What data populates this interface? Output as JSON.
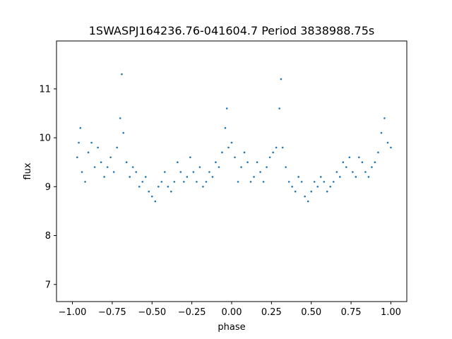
{
  "chart_data": {
    "type": "scatter",
    "title": "1SWASPJ164236.76-041604.7 Period 3838988.75s",
    "xlabel": "phase",
    "ylabel": "flux",
    "xlim": [
      -1.1,
      1.1
    ],
    "ylim": [
      6.65,
      11.98
    ],
    "xticks": [
      -1.0,
      -0.75,
      -0.5,
      -0.25,
      0.0,
      0.25,
      0.5,
      0.75,
      1.0
    ],
    "xtick_labels": [
      "−1.00",
      "−0.75",
      "−0.50",
      "−0.25",
      "0.00",
      "0.25",
      "0.50",
      "0.75",
      "1.00"
    ],
    "yticks": [
      7,
      8,
      9,
      10,
      11
    ],
    "ytick_labels": [
      "7",
      "8",
      "9",
      "10",
      "11"
    ],
    "grid": false,
    "point_color": "#1f77b4",
    "series": [
      {
        "x": [
          -0.97,
          -0.96,
          -0.95,
          -0.94,
          -0.92,
          -0.9,
          -0.88,
          -0.86,
          -0.84,
          -0.82,
          -0.8,
          -0.78,
          -0.76,
          -0.74,
          -0.72,
          -0.7,
          -0.69,
          -0.68,
          -0.66,
          -0.64,
          -0.62,
          -0.6,
          -0.58,
          -0.56,
          -0.54,
          -0.52,
          -0.5,
          -0.48,
          -0.46,
          -0.44,
          -0.42,
          -0.4,
          -0.38,
          -0.36,
          -0.34,
          -0.32,
          -0.3,
          -0.28,
          -0.26,
          -0.24,
          -0.22,
          -0.2,
          -0.18,
          -0.16,
          -0.14,
          -0.12,
          -0.1,
          -0.08,
          -0.06,
          -0.04,
          -0.03,
          -0.02,
          0.0,
          0.02,
          0.04,
          0.06,
          0.08,
          0.1,
          0.12,
          0.14,
          0.16,
          0.18,
          0.2,
          0.22,
          0.24,
          0.26,
          0.28,
          0.3,
          0.31,
          0.32,
          0.34,
          0.36,
          0.38,
          0.4,
          0.42,
          0.44,
          0.46,
          0.48,
          0.5,
          0.52,
          0.54,
          0.56,
          0.58,
          0.6,
          0.62,
          0.64,
          0.66,
          0.68,
          0.7,
          0.72,
          0.74,
          0.76,
          0.78,
          0.8,
          0.82,
          0.84,
          0.86,
          0.88,
          0.9,
          0.92,
          0.94,
          0.96,
          0.98,
          1.0
        ],
        "y": [
          9.6,
          9.9,
          10.2,
          9.3,
          9.1,
          9.7,
          9.9,
          9.4,
          9.8,
          9.5,
          9.2,
          9.4,
          9.6,
          9.3,
          9.8,
          10.4,
          11.3,
          10.1,
          9.5,
          9.2,
          9.4,
          9.3,
          9.0,
          9.1,
          9.2,
          8.9,
          8.8,
          8.7,
          9.0,
          9.1,
          9.3,
          9.0,
          8.9,
          9.1,
          9.5,
          9.3,
          9.1,
          9.2,
          9.6,
          9.3,
          9.1,
          9.4,
          9.0,
          9.1,
          9.3,
          9.2,
          9.5,
          9.4,
          9.7,
          10.2,
          10.6,
          9.8,
          9.9,
          9.6,
          9.1,
          9.4,
          9.7,
          9.5,
          9.1,
          9.2,
          9.5,
          9.3,
          9.1,
          9.4,
          9.6,
          9.7,
          9.8,
          10.6,
          11.2,
          9.8,
          9.4,
          9.1,
          9.0,
          8.9,
          9.2,
          9.1,
          8.8,
          8.7,
          8.9,
          9.1,
          9.0,
          9.2,
          9.1,
          8.9,
          9.0,
          9.1,
          9.3,
          9.2,
          9.5,
          9.4,
          9.6,
          9.3,
          9.2,
          9.6,
          9.5,
          9.3,
          9.2,
          9.4,
          9.5,
          9.7,
          10.1,
          10.4,
          9.9,
          9.8
        ]
      }
    ]
  }
}
